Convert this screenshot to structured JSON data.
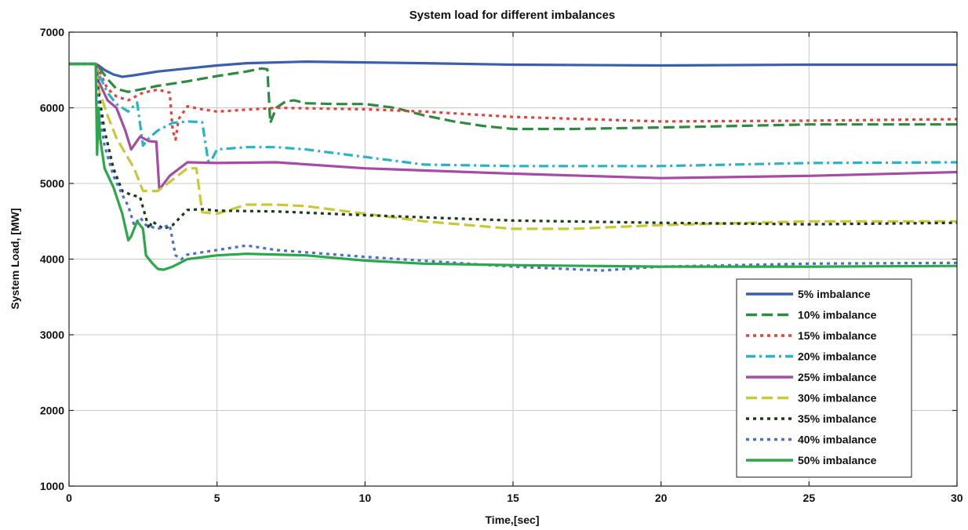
{
  "chart_data": {
    "type": "line",
    "title": "System load for different imbalances",
    "xlabel": "Time,[sec]",
    "ylabel": "System Load, [MW]",
    "xlim": [
      0,
      30
    ],
    "ylim": [
      1000,
      7000
    ],
    "xticks": [
      0,
      5,
      10,
      15,
      20,
      25,
      30
    ],
    "yticks": [
      1000,
      2000,
      3000,
      4000,
      5000,
      6000,
      7000
    ],
    "grid": true,
    "legend_position": "lower-right",
    "series": [
      {
        "name": "5% imbalance",
        "color": "#3a5fb0",
        "dash": "solid",
        "x": [
          0,
          0.9,
          1.0,
          1.2,
          1.5,
          1.8,
          2.2,
          3,
          4,
          5,
          6,
          8,
          10,
          12,
          15,
          20,
          25,
          30
        ],
        "y": [
          6580,
          6580,
          6560,
          6500,
          6440,
          6410,
          6430,
          6480,
          6520,
          6560,
          6590,
          6610,
          6600,
          6590,
          6570,
          6560,
          6570,
          6570
        ]
      },
      {
        "name": "10% imbalance",
        "color": "#2e8b3e",
        "dash": "long-dash",
        "x": [
          0,
          0.9,
          1.0,
          1.3,
          1.6,
          2.0,
          2.5,
          3,
          4,
          5,
          6,
          6.5,
          6.7,
          6.8,
          7.0,
          7.3,
          7.6,
          8,
          9,
          10,
          11,
          12,
          13,
          14,
          15,
          17,
          20,
          25,
          30
        ],
        "y": [
          6580,
          6580,
          6540,
          6380,
          6250,
          6210,
          6250,
          6290,
          6350,
          6420,
          6480,
          6520,
          6510,
          5800,
          6000,
          6080,
          6100,
          6060,
          6050,
          6050,
          6000,
          5900,
          5820,
          5760,
          5720,
          5720,
          5740,
          5780,
          5780
        ]
      },
      {
        "name": "15% imbalance",
        "color": "#e8403a",
        "dash": "dot",
        "x": [
          0,
          0.9,
          1.0,
          1.3,
          1.6,
          2.0,
          2.5,
          3.0,
          3.4,
          3.5,
          3.6,
          3.7,
          4.0,
          4.5,
          5,
          7,
          10,
          12,
          15,
          20,
          25,
          30
        ],
        "y": [
          6580,
          6580,
          6500,
          6250,
          6150,
          6100,
          6200,
          6240,
          6200,
          5700,
          5580,
          5850,
          6020,
          5980,
          5950,
          6000,
          5980,
          5950,
          5880,
          5820,
          5830,
          5850
        ]
      },
      {
        "name": "20% imbalance",
        "color": "#29b3c9",
        "dash": "dash-dot",
        "x": [
          0,
          0.9,
          1.0,
          1.3,
          1.6,
          2.0,
          2.3,
          2.5,
          2.7,
          3.0,
          3.5,
          4.0,
          4.5,
          4.7,
          4.8,
          5.0,
          6,
          7,
          8,
          10,
          12,
          15,
          20,
          25,
          30
        ],
        "y": [
          6580,
          6580,
          6450,
          6200,
          6050,
          5950,
          6070,
          5500,
          5600,
          5700,
          5800,
          5820,
          5810,
          5300,
          5300,
          5450,
          5480,
          5480,
          5450,
          5350,
          5250,
          5230,
          5230,
          5270,
          5280
        ]
      },
      {
        "name": "25% imbalance",
        "color": "#a64ca6",
        "dash": "solid",
        "x": [
          0,
          0.9,
          1.0,
          1.3,
          1.6,
          1.9,
          2.1,
          2.4,
          2.7,
          2.95,
          3.05,
          3.4,
          4.0,
          5,
          7,
          10,
          15,
          20,
          25,
          30
        ],
        "y": [
          6580,
          6580,
          6350,
          6100,
          6000,
          5700,
          5450,
          5620,
          5560,
          5550,
          4920,
          5100,
          5280,
          5270,
          5280,
          5200,
          5130,
          5070,
          5100,
          5150
        ]
      },
      {
        "name": "30% imbalance",
        "color": "#c9c936",
        "dash": "long-dash",
        "x": [
          0,
          0.9,
          1.0,
          1.3,
          1.6,
          1.9,
          2.2,
          2.5,
          3.0,
          3.5,
          4.0,
          4.3,
          4.5,
          5,
          6,
          7,
          8,
          10,
          12,
          15,
          17,
          20,
          25,
          30
        ],
        "y": [
          6580,
          6580,
          6250,
          5900,
          5600,
          5400,
          5200,
          4900,
          4900,
          5050,
          5200,
          5200,
          4620,
          4600,
          4720,
          4720,
          4700,
          4600,
          4500,
          4400,
          4400,
          4450,
          4500,
          4500
        ]
      },
      {
        "name": "35% imbalance",
        "color": "#1a3a1a",
        "dash": "dot",
        "x": [
          0,
          0.9,
          1.0,
          1.2,
          1.5,
          1.8,
          2.1,
          2.4,
          2.7,
          2.8,
          3.2,
          3.5,
          4.0,
          4.5,
          5,
          7,
          10,
          15,
          20,
          25,
          30
        ],
        "y": [
          6580,
          6580,
          6200,
          5700,
          5200,
          4900,
          4850,
          4820,
          4400,
          4500,
          4400,
          4450,
          4650,
          4660,
          4640,
          4630,
          4580,
          4510,
          4480,
          4460,
          4480
        ]
      },
      {
        "name": "40% imbalance",
        "color": "#4a6fd0",
        "dash": "dot",
        "x": [
          0,
          0.9,
          1.0,
          1.2,
          1.5,
          1.8,
          2.0,
          2.2,
          2.4,
          2.6,
          3.0,
          3.4,
          3.6,
          3.8,
          4.0,
          5,
          6,
          7,
          10,
          15,
          18,
          20,
          25,
          30
        ],
        "y": [
          6580,
          6580,
          6000,
          5500,
          5100,
          4850,
          4700,
          4450,
          4550,
          4450,
          4400,
          4450,
          4050,
          4000,
          4060,
          4120,
          4180,
          4120,
          4030,
          3900,
          3850,
          3900,
          3940,
          3950
        ]
      },
      {
        "name": "50% imbalance",
        "color": "#2aa84a",
        "dash": "solid",
        "x": [
          0,
          0.9,
          0.95,
          1.0,
          1.05,
          1.2,
          1.5,
          1.8,
          2.0,
          2.1,
          2.3,
          2.5,
          2.6,
          2.8,
          3.0,
          3.2,
          3.5,
          4.0,
          5,
          6,
          8,
          10,
          12,
          15,
          20,
          25,
          30
        ],
        "y": [
          6580,
          6580,
          5380,
          6000,
          5600,
          5200,
          4950,
          4600,
          4250,
          4300,
          4500,
          4400,
          4050,
          3950,
          3870,
          3860,
          3900,
          4000,
          4050,
          4070,
          4050,
          3980,
          3940,
          3920,
          3900,
          3900,
          3910
        ]
      }
    ]
  }
}
